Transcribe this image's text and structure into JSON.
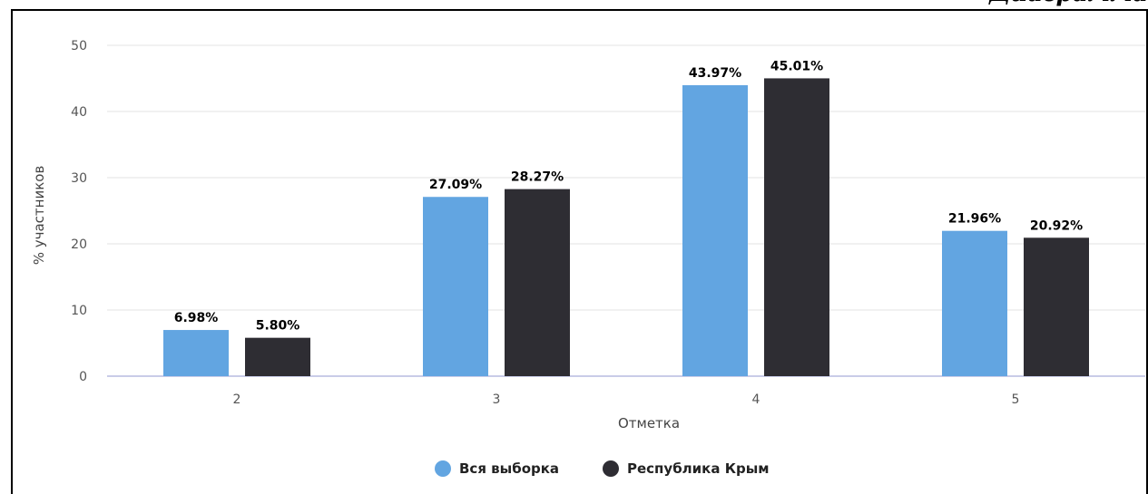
{
  "header": {
    "corner_caption": "Диаграмма"
  },
  "chart_data": {
    "type": "bar",
    "categories": [
      "2",
      "3",
      "4",
      "5"
    ],
    "series": [
      {
        "name": "Вся выборка",
        "color": "#62a5e1",
        "values": [
          6.98,
          27.09,
          43.97,
          21.96
        ],
        "labels": [
          "6.98%",
          "27.09%",
          "43.97%",
          "21.96%"
        ]
      },
      {
        "name": "Республика Крым",
        "color": "#2e2d33",
        "values": [
          5.8,
          28.27,
          45.01,
          20.92
        ],
        "labels": [
          "5.80%",
          "28.27%",
          "45.01%",
          "20.92%"
        ]
      }
    ],
    "title": "",
    "xlabel": "Отметка",
    "ylabel": "% участников",
    "ylim": [
      0,
      50
    ],
    "yticks": [
      "0",
      "10",
      "20",
      "30",
      "40",
      "50"
    ],
    "grid": true,
    "legend_position": "bottom-center"
  }
}
